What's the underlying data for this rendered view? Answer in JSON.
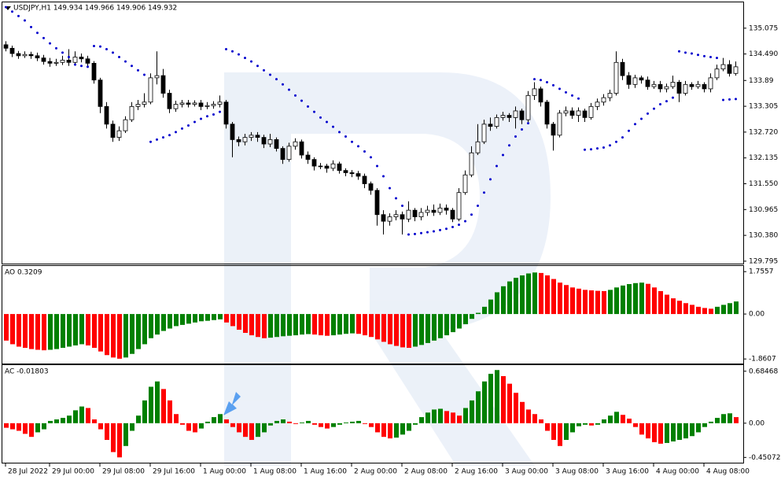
{
  "chart_data": [
    {
      "type": "candlestick",
      "title": "USDJPY,H1  149.934 149.966 149.906 149.932",
      "up_color": "#ffffff",
      "down_color": "#000000",
      "outline": "#000000",
      "sar_color": "#0000cd",
      "ylim": [
        129.74,
        135.66
      ],
      "yticks": [
        135.075,
        {
          "value": 134.49,
          "label": "134.490"
        },
        133.89,
        133.305,
        {
          "value": 132.72,
          "label": "132.720"
        },
        132.135,
        {
          "value": 131.55,
          "label": "131.550"
        },
        130.965,
        {
          "value": 130.38,
          "label": "130.380"
        },
        129.795
      ],
      "xticks": [
        {
          "value": 0,
          "label": "28 Jul 2022"
        },
        {
          "value": 7,
          "label": "29 Jul 00:00"
        },
        {
          "value": 15,
          "label": "29 Jul 08:00"
        },
        {
          "value": 23,
          "label": "29 Jul 16:00"
        },
        {
          "value": 31,
          "label": "1 Aug 00:00"
        },
        {
          "value": 39,
          "label": "1 Aug 08:00"
        },
        {
          "value": 47,
          "label": "1 Aug 16:00"
        },
        {
          "value": 55,
          "label": "2 Aug 00:00"
        },
        {
          "value": 63,
          "label": "2 Aug 08:00"
        },
        {
          "value": 71,
          "label": "2 Aug 16:00"
        },
        {
          "value": 79,
          "label": "3 Aug 00:00"
        },
        {
          "value": 87,
          "label": "3 Aug 08:00"
        },
        {
          "value": 95,
          "label": "3 Aug 16:00"
        },
        {
          "value": 103,
          "label": "4 Aug 00:00"
        },
        {
          "value": 111,
          "label": "4 Aug 08:00"
        }
      ],
      "open": [
        134.7,
        134.62,
        134.5,
        134.45,
        134.48,
        134.45,
        134.4,
        134.32,
        134.28,
        134.3,
        134.35,
        134.3,
        134.42,
        134.38,
        134.28,
        133.9,
        133.3,
        132.9,
        132.6,
        132.75,
        133.0,
        133.3,
        133.35,
        133.4,
        133.95,
        134.0,
        133.6,
        133.25,
        133.35,
        133.38,
        133.35,
        133.38,
        133.3,
        133.32,
        133.35,
        133.4,
        132.9,
        132.55,
        132.5,
        132.6,
        132.65,
        132.6,
        132.45,
        132.55,
        132.35,
        132.1,
        132.4,
        132.5,
        132.2,
        132.1,
        131.95,
        131.95,
        131.9,
        132.0,
        131.85,
        131.8,
        131.78,
        131.72,
        131.55,
        131.4,
        130.85,
        130.7,
        130.8,
        130.85,
        130.75,
        130.95,
        130.8,
        130.9,
        130.95,
        130.9,
        131.0,
        130.95,
        130.75,
        131.35,
        131.75,
        132.25,
        132.5,
        132.9,
        132.85,
        133.05,
        133.1,
        133.05,
        133.2,
        133.0,
        133.55,
        133.7,
        133.4,
        132.9,
        132.65,
        133.15,
        133.2,
        133.1,
        133.2,
        133.05,
        133.3,
        133.4,
        133.5,
        133.6,
        134.3,
        134.0,
        133.8,
        133.95,
        133.9,
        133.75,
        133.8,
        133.7,
        133.75,
        133.85,
        133.6,
        133.8,
        133.75,
        133.8,
        133.7,
        133.95,
        134.15,
        134.25,
        134.05
      ],
      "high": [
        134.78,
        134.68,
        134.56,
        134.55,
        134.54,
        134.52,
        134.47,
        134.4,
        134.38,
        134.45,
        134.6,
        134.55,
        134.5,
        134.45,
        134.33,
        133.95,
        133.4,
        132.98,
        132.85,
        133.08,
        133.4,
        133.45,
        133.6,
        134.05,
        134.55,
        134.15,
        133.68,
        133.43,
        133.45,
        133.45,
        133.44,
        133.45,
        133.4,
        133.42,
        133.55,
        133.45,
        132.95,
        132.62,
        132.68,
        132.72,
        132.72,
        132.66,
        132.68,
        132.6,
        132.4,
        132.48,
        132.58,
        132.55,
        132.28,
        132.15,
        132.02,
        132.0,
        132.08,
        132.05,
        131.9,
        131.86,
        131.84,
        131.78,
        131.6,
        131.45,
        130.95,
        130.88,
        130.95,
        130.92,
        131.15,
        131.0,
        131.0,
        131.05,
        131.08,
        131.1,
        131.08,
        131.0,
        131.45,
        131.85,
        132.4,
        132.9,
        133.0,
        133.05,
        133.12,
        133.18,
        133.15,
        133.3,
        133.25,
        133.65,
        133.85,
        133.75,
        133.45,
        132.95,
        133.22,
        133.3,
        133.28,
        133.28,
        133.25,
        133.38,
        133.48,
        133.58,
        133.68,
        134.55,
        134.38,
        134.08,
        134.02,
        134.0,
        133.98,
        133.88,
        133.88,
        133.82,
        134.0,
        133.9,
        133.88,
        133.85,
        133.88,
        133.85,
        134.05,
        134.25,
        134.4,
        134.35,
        134.32
      ],
      "low": [
        134.55,
        134.42,
        134.38,
        134.4,
        134.38,
        134.33,
        134.25,
        134.2,
        134.22,
        134.24,
        134.22,
        134.25,
        134.3,
        134.2,
        133.82,
        133.15,
        132.8,
        132.5,
        132.52,
        132.7,
        132.95,
        133.22,
        133.28,
        133.35,
        133.8,
        133.5,
        133.15,
        133.18,
        133.28,
        133.28,
        133.3,
        133.22,
        133.24,
        133.25,
        133.28,
        132.8,
        132.15,
        132.4,
        132.42,
        132.52,
        132.5,
        132.36,
        132.38,
        132.28,
        132.0,
        132.05,
        132.32,
        132.12,
        132.0,
        131.85,
        131.88,
        131.8,
        131.84,
        131.78,
        131.72,
        131.7,
        131.64,
        131.45,
        131.3,
        130.6,
        130.4,
        130.6,
        130.72,
        130.4,
        130.68,
        130.7,
        130.72,
        130.82,
        130.82,
        130.84,
        130.85,
        130.68,
        130.7,
        131.3,
        131.7,
        132.2,
        132.45,
        132.75,
        132.8,
        132.98,
        132.95,
        132.8,
        132.9,
        132.95,
        133.45,
        133.3,
        132.8,
        132.3,
        132.6,
        133.08,
        133.02,
        132.95,
        132.95,
        133.0,
        133.22,
        133.32,
        133.42,
        133.55,
        133.9,
        133.7,
        133.72,
        133.82,
        133.68,
        133.7,
        133.62,
        133.62,
        133.7,
        133.4,
        133.55,
        133.68,
        133.7,
        133.62,
        133.62,
        133.9,
        134.1,
        133.98,
        134.0
      ],
      "close": [
        134.62,
        134.5,
        134.45,
        134.48,
        134.45,
        134.4,
        134.32,
        134.28,
        134.3,
        134.35,
        134.3,
        134.42,
        134.38,
        134.28,
        133.9,
        133.3,
        132.9,
        132.6,
        132.75,
        133.0,
        133.3,
        133.35,
        133.4,
        133.95,
        134.0,
        133.6,
        133.25,
        133.35,
        133.38,
        133.35,
        133.38,
        133.3,
        133.32,
        133.35,
        133.4,
        132.9,
        132.55,
        132.5,
        132.6,
        132.65,
        132.6,
        132.45,
        132.55,
        132.35,
        132.1,
        132.4,
        132.5,
        132.2,
        132.1,
        131.95,
        131.95,
        131.9,
        132.0,
        131.85,
        131.8,
        131.78,
        131.72,
        131.55,
        131.4,
        130.85,
        130.7,
        130.8,
        130.85,
        130.75,
        130.95,
        130.8,
        130.9,
        130.95,
        130.9,
        131.0,
        130.95,
        130.75,
        131.35,
        131.75,
        132.25,
        132.5,
        132.9,
        132.85,
        133.05,
        133.1,
        133.05,
        133.2,
        133.0,
        133.55,
        133.7,
        133.4,
        132.9,
        132.65,
        133.15,
        133.2,
        133.1,
        133.2,
        133.05,
        133.3,
        133.4,
        133.5,
        133.6,
        134.3,
        134.0,
        133.8,
        133.95,
        133.9,
        133.75,
        133.8,
        133.7,
        133.75,
        133.85,
        133.6,
        133.8,
        133.75,
        133.8,
        133.7,
        133.95,
        134.15,
        134.25,
        134.05,
        134.2
      ],
      "sar": [
        135.55,
        135.45,
        135.35,
        135.25,
        135.1,
        134.97,
        134.85,
        134.73,
        134.62,
        134.52,
        134.42,
        134.25,
        134.22,
        134.2,
        134.67,
        134.66,
        134.6,
        134.52,
        134.42,
        134.32,
        134.22,
        134.12,
        134.02,
        132.5,
        132.55,
        132.6,
        132.65,
        132.72,
        132.8,
        132.87,
        132.95,
        133.02,
        133.08,
        133.12,
        133.18,
        134.6,
        134.55,
        134.48,
        134.4,
        134.32,
        134.22,
        134.12,
        134.02,
        133.92,
        133.8,
        133.68,
        133.55,
        133.43,
        133.3,
        133.18,
        133.05,
        132.95,
        132.84,
        132.72,
        132.62,
        132.5,
        132.4,
        132.28,
        132.15,
        131.95,
        131.72,
        131.45,
        131.22,
        131.05,
        130.4,
        130.41,
        130.43,
        130.45,
        130.47,
        130.5,
        130.53,
        130.57,
        130.62,
        130.7,
        130.85,
        131.05,
        131.35,
        131.65,
        131.95,
        132.2,
        132.42,
        132.62,
        132.78,
        132.92,
        133.92,
        133.9,
        133.85,
        133.78,
        133.7,
        133.62,
        133.55,
        133.48,
        132.32,
        132.33,
        132.35,
        132.37,
        132.42,
        132.5,
        132.6,
        132.75,
        132.9,
        133.02,
        133.14,
        133.25,
        133.35,
        133.42,
        133.5,
        134.55,
        134.52,
        134.5,
        134.47,
        134.44,
        134.42,
        134.4,
        133.45,
        133.46,
        133.47
      ]
    },
    {
      "type": "bar",
      "title": "AO 0.3209",
      "up_color": "#008000",
      "down_color": "#ff0000",
      "ylim": [
        -2.05,
        1.99
      ],
      "yticks": [
        1.7557,
        {
          "value": 0,
          "label": "0.00"
        },
        -1.8607
      ],
      "values": [
        -1.1,
        -1.25,
        -1.35,
        -1.4,
        -1.45,
        -1.48,
        -1.5,
        -1.48,
        -1.45,
        -1.4,
        -1.35,
        -1.3,
        -1.25,
        -1.3,
        -1.4,
        -1.55,
        -1.7,
        -1.8,
        -1.85,
        -1.8,
        -1.65,
        -1.45,
        -1.25,
        -1.0,
        -0.85,
        -0.7,
        -0.6,
        -0.5,
        -0.45,
        -0.4,
        -0.35,
        -0.3,
        -0.28,
        -0.25,
        -0.22,
        -0.35,
        -0.5,
        -0.65,
        -0.78,
        -0.88,
        -0.95,
        -1.0,
        -0.98,
        -0.95,
        -0.92,
        -0.9,
        -0.88,
        -0.85,
        -0.83,
        -0.85,
        -0.88,
        -0.9,
        -0.88,
        -0.85,
        -0.82,
        -0.8,
        -0.82,
        -0.88,
        -0.95,
        -1.05,
        -1.15,
        -1.25,
        -1.32,
        -1.38,
        -1.4,
        -1.35,
        -1.28,
        -1.2,
        -1.1,
        -1.0,
        -0.88,
        -0.75,
        -0.6,
        -0.42,
        -0.2,
        0.05,
        0.3,
        0.6,
        0.9,
        1.15,
        1.35,
        1.5,
        1.6,
        1.68,
        1.72,
        1.7,
        1.6,
        1.45,
        1.3,
        1.2,
        1.1,
        1.05,
        1.0,
        0.98,
        0.96,
        0.95,
        1.0,
        1.1,
        1.18,
        1.24,
        1.28,
        1.3,
        1.25,
        1.1,
        0.95,
        0.8,
        0.65,
        0.55,
        0.45,
        0.38,
        0.3,
        0.25,
        0.22,
        0.3,
        0.38,
        0.45,
        0.52
      ]
    },
    {
      "type": "bar",
      "title": "AC -0.01803",
      "up_color": "#008000",
      "down_color": "#ff0000",
      "ylim": [
        -0.52,
        0.765
      ],
      "yticks": [
        0.68468,
        {
          "value": 0,
          "label": "0.00"
        },
        -0.45072
      ],
      "values": [
        -0.06,
        -0.08,
        -0.1,
        -0.14,
        -0.18,
        -0.12,
        -0.08,
        0.03,
        0.05,
        0.07,
        0.1,
        0.17,
        0.22,
        0.2,
        0.05,
        -0.08,
        -0.22,
        -0.38,
        -0.45,
        -0.3,
        -0.1,
        0.1,
        0.3,
        0.48,
        0.55,
        0.45,
        0.3,
        0.12,
        -0.02,
        -0.1,
        -0.12,
        -0.07,
        0.02,
        0.08,
        0.12,
        0.05,
        -0.05,
        -0.12,
        -0.18,
        -0.22,
        -0.18,
        -0.12,
        -0.03,
        0.03,
        0.05,
        0.02,
        -0.01,
        0.01,
        0.03,
        -0.02,
        -0.05,
        -0.07,
        -0.05,
        -0.02,
        0.01,
        0.02,
        0.03,
        -0.01,
        -0.05,
        -0.12,
        -0.18,
        -0.2,
        -0.19,
        -0.15,
        -0.1,
        -0.02,
        0.08,
        0.14,
        0.18,
        0.19,
        0.16,
        0.14,
        0.1,
        0.2,
        0.3,
        0.42,
        0.55,
        0.65,
        0.7,
        0.62,
        0.52,
        0.4,
        0.28,
        0.18,
        0.12,
        0.05,
        -0.1,
        -0.22,
        -0.3,
        -0.22,
        -0.12,
        -0.04,
        -0.02,
        -0.03,
        -0.02,
        0.05,
        0.1,
        0.15,
        0.11,
        0.06,
        -0.05,
        -0.15,
        -0.2,
        -0.25,
        -0.27,
        -0.26,
        -0.24,
        -0.22,
        -0.2,
        -0.17,
        -0.12,
        -0.05,
        0.02,
        0.07,
        0.12,
        0.13,
        0.08
      ]
    }
  ]
}
